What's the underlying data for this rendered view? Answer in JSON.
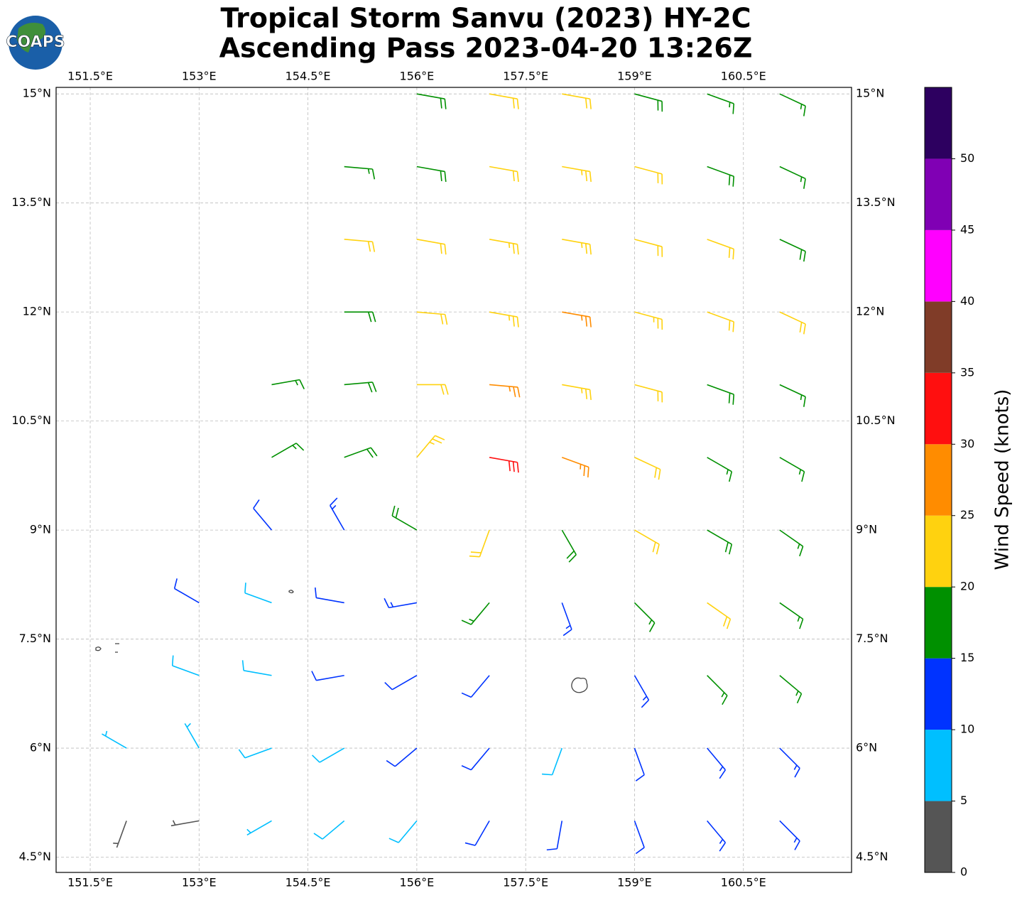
{
  "logo_text": "COAPS",
  "chart_data": {
    "type": "wind_barbs",
    "title": "Tropical Storm Sanvu (2023) HY-2C",
    "subtitle": "Ascending Pass 2023-04-20 13:26Z",
    "xlim": [
      151.03,
      161.99
    ],
    "ylim": [
      4.29,
      15.09
    ],
    "xticks": [
      {
        "value": 151.5,
        "label": "151.5°E"
      },
      {
        "value": 153,
        "label": "153°E"
      },
      {
        "value": 154.5,
        "label": "154.5°E"
      },
      {
        "value": 156,
        "label": "156°E"
      },
      {
        "value": 157.5,
        "label": "157.5°E"
      },
      {
        "value": 159,
        "label": "159°E"
      },
      {
        "value": 160.5,
        "label": "160.5°E"
      }
    ],
    "yticks": [
      {
        "value": 4.5,
        "label": "4.5°N"
      },
      {
        "value": 6,
        "label": "6°N"
      },
      {
        "value": 7.5,
        "label": "7.5°N"
      },
      {
        "value": 9,
        "label": "9°N"
      },
      {
        "value": 10.5,
        "label": "10.5°N"
      },
      {
        "value": 12,
        "label": "12°N"
      },
      {
        "value": 13.5,
        "label": "13.5°N"
      },
      {
        "value": 15,
        "label": "15°N"
      }
    ],
    "grid": true,
    "colorbar": {
      "label": "Wind Speed (knots)",
      "levels": [
        0,
        5,
        10,
        15,
        20,
        25,
        30,
        35,
        40,
        45,
        50,
        55
      ],
      "colors": [
        "#555555",
        "#00bfff",
        "#0033ff",
        "#009000",
        "#ffd20f",
        "#ff8c00",
        "#ff0f0f",
        "#803c28",
        "#ff00ff",
        "#8000b4",
        "#2d0060"
      ],
      "ticks": [
        0,
        5,
        10,
        15,
        20,
        25,
        30,
        35,
        40,
        45,
        50
      ]
    },
    "barbs": {
      "lon": [
        156,
        157,
        158,
        159,
        160,
        161,
        155,
        156,
        157,
        158,
        159,
        160,
        161,
        155,
        156,
        157,
        158,
        159,
        160,
        161,
        155,
        156,
        157,
        158,
        159,
        160,
        161,
        154,
        155,
        156,
        157,
        158,
        159,
        160,
        161,
        154,
        155,
        156,
        157,
        158,
        159,
        160,
        161,
        154,
        155,
        156,
        157,
        158,
        159,
        160,
        161,
        153,
        154,
        155,
        156,
        157,
        158,
        159,
        160,
        161,
        153,
        154,
        155,
        156,
        157,
        159,
        160,
        161,
        152,
        153,
        154,
        155,
        156,
        157,
        158,
        159,
        160,
        161,
        152,
        153,
        154,
        155,
        156,
        157,
        158,
        159,
        160,
        161
      ],
      "lat": [
        15,
        15,
        15,
        15,
        15,
        15,
        14,
        14,
        14,
        14,
        14,
        14,
        14,
        13,
        13,
        13,
        13,
        13,
        13,
        13,
        12,
        12,
        12,
        12,
        12,
        12,
        12,
        11,
        11,
        11,
        11,
        11,
        11,
        11,
        11,
        10,
        10,
        10,
        10,
        10,
        10,
        10,
        10,
        9,
        9,
        9,
        9,
        9,
        9,
        9,
        9,
        8,
        8,
        8,
        8,
        8,
        8,
        8,
        8,
        8,
        7,
        7,
        7,
        7,
        7,
        7,
        7,
        7,
        6,
        6,
        6,
        6,
        6,
        6,
        6,
        6,
        6,
        6,
        5,
        5,
        5,
        5,
        5,
        5,
        5,
        5,
        5,
        5
      ],
      "speed": [
        18,
        20,
        22,
        18,
        17,
        17,
        17,
        19,
        22,
        23,
        21,
        18,
        17,
        21,
        22,
        23,
        23,
        22,
        21,
        18,
        18,
        22,
        23,
        26,
        24,
        22,
        21,
        17,
        18,
        22,
        26,
        24,
        22,
        19,
        16,
        17,
        19,
        24,
        30,
        26,
        21,
        17,
        15,
        12,
        13,
        18,
        21,
        18,
        20,
        19,
        17,
        10,
        9,
        12,
        13,
        16,
        14,
        17,
        20,
        16,
        9,
        8,
        10,
        12,
        11,
        13,
        16,
        16,
        7,
        6,
        8,
        9,
        11,
        10,
        8,
        12,
        14,
        14,
        3,
        4,
        7,
        9,
        8,
        10,
        11,
        12,
        13,
        13
      ],
      "direction": [
        100,
        100,
        100,
        105,
        110,
        115,
        95,
        100,
        100,
        100,
        105,
        110,
        115,
        95,
        100,
        100,
        100,
        105,
        110,
        115,
        90,
        95,
        100,
        100,
        105,
        110,
        115,
        80,
        85,
        90,
        95,
        100,
        105,
        110,
        115,
        60,
        70,
        40,
        100,
        110,
        115,
        120,
        120,
        320,
        330,
        300,
        200,
        150,
        120,
        120,
        125,
        300,
        290,
        280,
        260,
        220,
        160,
        135,
        125,
        125,
        290,
        280,
        260,
        240,
        220,
        150,
        135,
        130,
        300,
        330,
        250,
        240,
        230,
        220,
        200,
        160,
        140,
        135,
        200,
        260,
        240,
        230,
        220,
        210,
        190,
        160,
        140,
        135
      ]
    }
  }
}
